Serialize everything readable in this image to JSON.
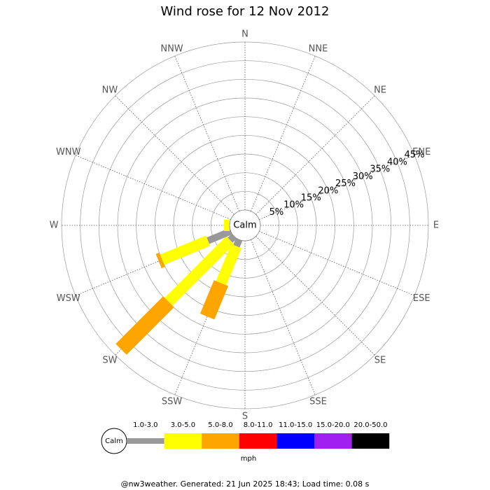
{
  "chart_data": {
    "type": "wind_rose",
    "title": "Wind rose for 12 Nov 2012",
    "categories": [
      "N",
      "NNE",
      "NE",
      "ENE",
      "E",
      "ESE",
      "SE",
      "SSE",
      "S",
      "SSW",
      "SW",
      "WSW",
      "W",
      "WNW",
      "NW",
      "NNW"
    ],
    "calm_label": "Calm",
    "unit_label": "mph",
    "footer": "@nw3weather. Generated: 21 Jun 2025 18:43; Load time: 0.08 s",
    "rlim": [
      0,
      45
    ],
    "rticks": [
      {
        "value": 5,
        "label": "5%"
      },
      {
        "value": 10,
        "label": "10%"
      },
      {
        "value": 15,
        "label": "15%"
      },
      {
        "value": 20,
        "label": "20%"
      },
      {
        "value": 25,
        "label": "25%"
      },
      {
        "value": 30,
        "label": "30%"
      },
      {
        "value": 35,
        "label": "35%"
      },
      {
        "value": 40,
        "label": "40%"
      },
      {
        "value": 45,
        "label": "45%"
      }
    ],
    "series": [
      {
        "name": "1.0-3.0",
        "color": "#999999",
        "values": [
          0,
          0,
          0,
          0,
          0,
          0,
          0,
          0,
          0,
          1.9,
          1.5,
          6.6,
          0,
          0,
          0,
          0
        ]
      },
      {
        "name": "3.0-5.0",
        "color": "#ffff00",
        "values": [
          0,
          0,
          0,
          0,
          0,
          0,
          0,
          0,
          0,
          10.7,
          23.3,
          13.3,
          1.5,
          0,
          0,
          0
        ]
      },
      {
        "name": "5.0-8.0",
        "color": "#ffa500",
        "values": [
          0,
          0,
          0,
          0,
          0,
          0,
          0,
          0,
          0,
          9.7,
          18,
          1,
          0,
          0,
          0,
          0
        ]
      },
      {
        "name": "8.0-11.0",
        "color": "#ff0000",
        "values": [
          0,
          0,
          0,
          0,
          0,
          0,
          0,
          0,
          0,
          0,
          0,
          0,
          0,
          0,
          0,
          0
        ]
      },
      {
        "name": "11.0-15.0",
        "color": "#0000ff",
        "values": [
          0,
          0,
          0,
          0,
          0,
          0,
          0,
          0,
          0,
          0,
          0,
          0,
          0,
          0,
          0,
          0
        ]
      },
      {
        "name": "15.0-20.0",
        "color": "#a020f0",
        "values": [
          0,
          0,
          0,
          0,
          0,
          0,
          0,
          0,
          0,
          0,
          0,
          0,
          0,
          0,
          0,
          0
        ]
      },
      {
        "name": "20.0-50.0",
        "color": "#000000",
        "values": [
          0,
          0,
          0,
          0,
          0,
          0,
          0,
          0,
          0,
          0,
          0,
          0,
          0,
          0,
          0,
          0
        ]
      }
    ]
  }
}
